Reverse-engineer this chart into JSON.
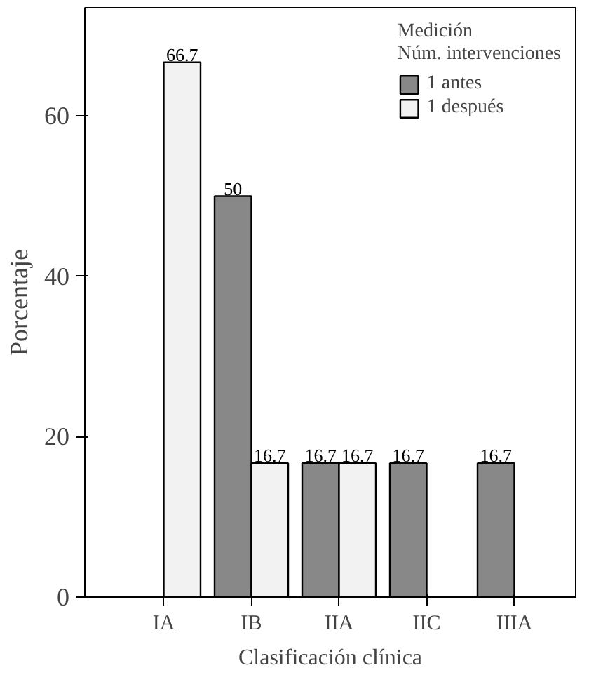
{
  "chart_data": {
    "type": "bar",
    "xlabel": "Clasificación clínica",
    "ylabel": "Porcentaje",
    "legend_title": "Medición\nNúm. intervenciones",
    "categories": [
      "IA",
      "IB",
      "IIA",
      "IIC",
      "IIIA"
    ],
    "series": [
      {
        "name": "1 antes",
        "color": "#888888",
        "values": [
          null,
          50,
          16.7,
          16.7,
          16.7
        ]
      },
      {
        "name": "1 después",
        "color": "#f2f2f2",
        "values": [
          66.7,
          16.7,
          16.7,
          null,
          null
        ]
      }
    ],
    "ylim": [
      0,
      73.5
    ],
    "yticks": [
      0,
      20,
      40,
      60
    ],
    "grid": false,
    "legend": "top right",
    "data_labels": true
  }
}
